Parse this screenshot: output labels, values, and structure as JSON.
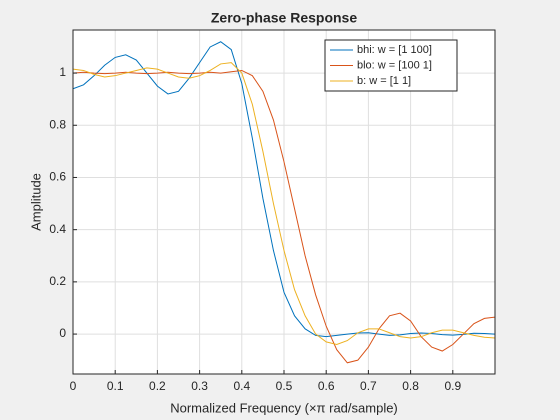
{
  "chart_data": {
    "type": "line",
    "title": "Zero-phase Response",
    "x_label": "Normalized Frequency (×π rad/sample)",
    "y_label": "Amplitude",
    "x": [
      0,
      0.025,
      0.05,
      0.075,
      0.1,
      0.125,
      0.15,
      0.175,
      0.2,
      0.225,
      0.25,
      0.275,
      0.3,
      0.325,
      0.35,
      0.375,
      0.4,
      0.425,
      0.45,
      0.475,
      0.5,
      0.525,
      0.55,
      0.575,
      0.6,
      0.625,
      0.65,
      0.675,
      0.7,
      0.725,
      0.75,
      0.775,
      0.8,
      0.825,
      0.85,
      0.875,
      0.9,
      0.925,
      0.95,
      0.975,
      1
    ],
    "series": [
      {
        "name": "bhi: w = [1 100]",
        "color": "#0072bd",
        "values": [
          0.94,
          0.955,
          0.99,
          1.03,
          1.06,
          1.07,
          1.05,
          1.0,
          0.95,
          0.92,
          0.93,
          0.98,
          1.04,
          1.1,
          1.12,
          1.09,
          0.96,
          0.75,
          0.52,
          0.32,
          0.16,
          0.07,
          0.02,
          -0.005,
          -0.01,
          -0.005,
          0,
          0.004,
          0.005,
          0,
          -0.005,
          -0.003,
          0.002,
          0.004,
          0.002,
          -0.002,
          -0.004,
          -0.001,
          0.003,
          0.002,
          0
        ]
      },
      {
        "name": "blo: w = [100 1]",
        "color": "#d95319",
        "values": [
          1.0,
          1.003,
          1.0,
          0.998,
          1.0,
          1.003,
          1.0,
          0.998,
          1.0,
          1.003,
          1.0,
          0.998,
          1.0,
          1.003,
          1.0,
          1.005,
          1.01,
          0.99,
          0.93,
          0.82,
          0.66,
          0.48,
          0.3,
          0.15,
          0.03,
          -0.06,
          -0.11,
          -0.1,
          -0.05,
          0.02,
          0.07,
          0.08,
          0.05,
          -0.01,
          -0.05,
          -0.065,
          -0.04,
          0,
          0.04,
          0.06,
          0.065
        ]
      },
      {
        "name": "b: w = [1 1]",
        "color": "#edb120",
        "values": [
          1.015,
          1.01,
          0.995,
          0.985,
          0.99,
          1.0,
          1.01,
          1.02,
          1.015,
          1.0,
          0.985,
          0.98,
          0.99,
          1.01,
          1.035,
          1.04,
          1.0,
          0.88,
          0.7,
          0.5,
          0.32,
          0.17,
          0.07,
          0.0,
          -0.03,
          -0.04,
          -0.025,
          0.005,
          0.02,
          0.02,
          0.005,
          -0.01,
          -0.015,
          -0.01,
          0.005,
          0.015,
          0.015,
          0.005,
          -0.005,
          -0.012,
          -0.015
        ]
      }
    ],
    "xlim": [
      0,
      1
    ],
    "ylim": [
      -0.153,
      1.165
    ],
    "xticks": [
      0,
      0.1,
      0.2,
      0.3,
      0.4,
      0.5,
      0.6,
      0.7,
      0.8,
      0.9
    ],
    "yticks": [
      0,
      0.2,
      0.4,
      0.6,
      0.8,
      1
    ],
    "grid": true,
    "legend": "top-right"
  }
}
